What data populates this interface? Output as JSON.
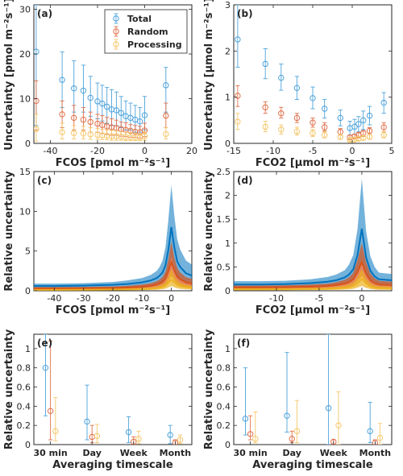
{
  "colors": {
    "total": "#0072BD",
    "random": "#D95319",
    "processing": "#EDB120",
    "total_marker": "#4DA3DB",
    "random_marker": "#E0704A",
    "processing_marker": "#F5C76A",
    "axis": "#262626"
  },
  "chart_data": [
    {
      "id": "a",
      "panel_label": "(a)",
      "type": "scatter",
      "xlabel": "FCOS [pmol m⁻²s⁻¹]",
      "ylabel": "Uncertainty [pmol m⁻²s⁻¹]",
      "xlim": [
        -47,
        20
      ],
      "ylim": [
        0,
        31
      ],
      "xticks": [
        -40,
        -20,
        0,
        20
      ],
      "yticks": [
        0,
        10,
        20,
        30
      ],
      "legend": {
        "placement": "top",
        "entries": [
          "Total",
          "Random",
          "Processing"
        ]
      },
      "x": [
        -46,
        -35,
        -30,
        -26,
        -23,
        -20,
        -18,
        -16,
        -14,
        -12,
        -10,
        -8,
        -6,
        -4,
        -2,
        0,
        9
      ],
      "series": [
        {
          "name": "Total",
          "values": [
            20.5,
            14.2,
            12.3,
            11.8,
            10.2,
            9.4,
            8.9,
            8.2,
            7.6,
            7.4,
            6.8,
            6.1,
            5.7,
            5.3,
            4.9,
            6.3,
            13.0
          ],
          "lower": [
            4.0,
            8.0,
            7.0,
            7.0,
            6.0,
            5.5,
            5.0,
            4.5,
            4.0,
            4.0,
            3.5,
            3.0,
            3.0,
            2.5,
            2.5,
            3.0,
            7.0
          ],
          "upper": [
            31.0,
            20.5,
            18.5,
            17.5,
            15.0,
            13.5,
            13.0,
            12.5,
            12.0,
            11.5,
            10.5,
            9.5,
            9.0,
            8.5,
            8.0,
            10.5,
            17.0
          ]
        },
        {
          "name": "Random",
          "values": [
            9.5,
            6.5,
            5.7,
            5.3,
            4.8,
            4.4,
            4.1,
            3.8,
            3.6,
            3.4,
            3.2,
            3.0,
            2.8,
            2.6,
            2.5,
            2.9,
            6.2
          ],
          "lower": [
            3.0,
            3.5,
            3.0,
            3.0,
            2.5,
            2.5,
            2.2,
            2.0,
            1.8,
            1.8,
            1.6,
            1.5,
            1.4,
            1.3,
            1.2,
            1.5,
            3.5
          ],
          "upper": [
            14.0,
            9.5,
            8.5,
            8.0,
            7.0,
            6.5,
            6.2,
            5.8,
            5.5,
            5.2,
            4.8,
            4.6,
            4.2,
            4.0,
            3.8,
            4.5,
            9.0
          ]
        },
        {
          "name": "Processing",
          "values": [
            3.2,
            2.5,
            2.3,
            2.2,
            2.0,
            1.9,
            1.8,
            1.7,
            1.6,
            1.6,
            1.5,
            1.4,
            1.4,
            1.3,
            1.3,
            1.6,
            2.1
          ],
          "lower": [
            0.5,
            1.0,
            1.0,
            1.0,
            0.9,
            0.9,
            0.8,
            0.8,
            0.7,
            0.7,
            0.7,
            0.6,
            0.6,
            0.6,
            0.6,
            0.7,
            1.0
          ],
          "upper": [
            6.5,
            4.5,
            4.0,
            3.8,
            3.5,
            3.3,
            3.1,
            3.0,
            2.9,
            2.8,
            2.6,
            2.5,
            2.4,
            2.3,
            2.2,
            2.6,
            3.5
          ]
        }
      ]
    },
    {
      "id": "b",
      "panel_label": "(b)",
      "type": "scatter",
      "xlabel": "FCO2 [μmol m⁻²s⁻¹]",
      "ylabel": "Uncertainty [μmol m⁻²s⁻¹]",
      "xlim": [
        -15,
        5
      ],
      "ylim": [
        0,
        3
      ],
      "xticks": [
        -15,
        -10,
        -5,
        0,
        5
      ],
      "yticks": [
        0,
        1,
        2,
        3
      ],
      "x": [
        -14.5,
        -11,
        -9,
        -7,
        -5,
        -3.5,
        -1.5,
        -0.3,
        0.3,
        0.8,
        1.4,
        2.2,
        4
      ],
      "series": [
        {
          "name": "Total",
          "values": [
            2.25,
            1.72,
            1.42,
            1.2,
            0.98,
            0.75,
            0.55,
            0.33,
            0.36,
            0.42,
            0.5,
            0.6,
            0.88
          ],
          "lower": [
            1.65,
            1.4,
            1.15,
            0.95,
            0.75,
            0.55,
            0.38,
            0.18,
            0.2,
            0.25,
            0.3,
            0.4,
            0.65
          ],
          "upper": [
            3.0,
            2.05,
            1.72,
            1.45,
            1.22,
            0.95,
            0.72,
            0.48,
            0.52,
            0.58,
            0.7,
            0.8,
            1.1
          ]
        },
        {
          "name": "Random",
          "values": [
            1.03,
            0.78,
            0.65,
            0.55,
            0.45,
            0.35,
            0.25,
            0.13,
            0.15,
            0.18,
            0.22,
            0.27,
            0.35
          ],
          "lower": [
            0.8,
            0.65,
            0.55,
            0.45,
            0.35,
            0.27,
            0.18,
            0.08,
            0.1,
            0.12,
            0.15,
            0.2,
            0.25
          ],
          "upper": [
            1.25,
            0.9,
            0.78,
            0.65,
            0.55,
            0.45,
            0.32,
            0.18,
            0.2,
            0.24,
            0.28,
            0.34,
            0.45
          ]
        },
        {
          "name": "Processing",
          "values": [
            0.47,
            0.36,
            0.3,
            0.26,
            0.22,
            0.18,
            0.14,
            0.07,
            0.08,
            0.1,
            0.12,
            0.14,
            0.18
          ],
          "lower": [
            0.3,
            0.25,
            0.2,
            0.18,
            0.15,
            0.12,
            0.09,
            0.04,
            0.05,
            0.06,
            0.07,
            0.09,
            0.12
          ],
          "upper": [
            0.65,
            0.48,
            0.4,
            0.35,
            0.3,
            0.25,
            0.2,
            0.1,
            0.12,
            0.14,
            0.16,
            0.2,
            0.25
          ]
        }
      ]
    },
    {
      "id": "c",
      "panel_label": "(c)",
      "type": "area",
      "xlabel": "FCOS [pmol m⁻²s⁻¹]",
      "ylabel": "Relative uncertainty",
      "xlim": [
        -47,
        7
      ],
      "ylim": [
        0,
        15
      ],
      "xticks": [
        -40,
        -30,
        -20,
        -10,
        0
      ],
      "yticks": [
        0,
        5,
        10,
        15
      ],
      "x": [
        -47,
        -40,
        -30,
        -20,
        -15,
        -10,
        -7,
        -5,
        -4,
        -3,
        -2,
        -1,
        0,
        1,
        2,
        3,
        5,
        7
      ],
      "series": [
        {
          "name": "Total",
          "values": [
            0.6,
            0.6,
            0.65,
            0.75,
            0.85,
            1.05,
            1.3,
            1.6,
            1.9,
            2.3,
            3.2,
            5.2,
            8.0,
            5.5,
            3.7,
            3.0,
            2.2,
            1.9
          ],
          "lower": [
            0.3,
            0.3,
            0.32,
            0.38,
            0.42,
            0.52,
            0.65,
            0.8,
            0.95,
            1.15,
            1.6,
            2.6,
            4.2,
            2.8,
            1.9,
            1.5,
            1.1,
            0.95
          ],
          "upper": [
            0.9,
            0.9,
            0.95,
            1.1,
            1.3,
            1.6,
            2.0,
            2.5,
            3.0,
            3.8,
            5.5,
            9.0,
            13.3,
            9.5,
            6.5,
            5.2,
            3.8,
            3.3
          ]
        },
        {
          "name": "Random",
          "values": [
            0.3,
            0.3,
            0.32,
            0.36,
            0.4,
            0.5,
            0.62,
            0.78,
            0.92,
            1.12,
            1.55,
            2.5,
            3.6,
            2.6,
            1.8,
            1.45,
            1.05,
            0.92
          ],
          "lower": [
            0.15,
            0.15,
            0.16,
            0.18,
            0.2,
            0.25,
            0.3,
            0.38,
            0.45,
            0.55,
            0.75,
            1.2,
            1.8,
            1.3,
            0.9,
            0.7,
            0.5,
            0.45
          ],
          "upper": [
            0.45,
            0.45,
            0.48,
            0.55,
            0.62,
            0.78,
            0.95,
            1.2,
            1.4,
            1.75,
            2.4,
            4.0,
            6.2,
            4.2,
            2.9,
            2.3,
            1.7,
            1.5
          ]
        },
        {
          "name": "Processing",
          "values": [
            0.12,
            0.12,
            0.13,
            0.15,
            0.17,
            0.21,
            0.26,
            0.33,
            0.39,
            0.47,
            0.65,
            1.05,
            1.4,
            1.1,
            0.76,
            0.6,
            0.44,
            0.38
          ],
          "lower": [
            0.05,
            0.05,
            0.05,
            0.06,
            0.07,
            0.08,
            0.1,
            0.13,
            0.16,
            0.19,
            0.26,
            0.42,
            0.6,
            0.44,
            0.3,
            0.24,
            0.18,
            0.15
          ],
          "upper": [
            0.2,
            0.2,
            0.22,
            0.25,
            0.28,
            0.35,
            0.43,
            0.55,
            0.65,
            0.8,
            1.1,
            1.8,
            2.7,
            1.9,
            1.3,
            1.0,
            0.75,
            0.65
          ]
        }
      ]
    },
    {
      "id": "d",
      "panel_label": "(d)",
      "type": "area",
      "xlabel": "FCO2 [μmol m⁻²s⁻¹]",
      "ylabel": "Relative uncertainty",
      "xlim": [
        -15,
        3.5
      ],
      "ylim": [
        0,
        2.5
      ],
      "xticks": [
        -10,
        -5,
        0
      ],
      "yticks": [
        0,
        0.5,
        1,
        1.5,
        2,
        2.5
      ],
      "x": [
        -15,
        -12,
        -9,
        -6,
        -4,
        -3,
        -2,
        -1.5,
        -1,
        -0.5,
        0,
        0.5,
        1,
        1.5,
        2,
        3.5
      ],
      "series": [
        {
          "name": "Total",
          "values": [
            0.13,
            0.13,
            0.14,
            0.16,
            0.19,
            0.22,
            0.28,
            0.34,
            0.45,
            0.75,
            1.3,
            0.7,
            0.42,
            0.3,
            0.24,
            0.22
          ],
          "lower": [
            0.07,
            0.07,
            0.07,
            0.08,
            0.1,
            0.12,
            0.15,
            0.18,
            0.23,
            0.38,
            0.65,
            0.35,
            0.21,
            0.15,
            0.12,
            0.11
          ],
          "upper": [
            0.2,
            0.2,
            0.21,
            0.24,
            0.29,
            0.34,
            0.43,
            0.55,
            0.75,
            1.3,
            2.35,
            1.25,
            0.72,
            0.5,
            0.38,
            0.35
          ]
        },
        {
          "name": "Random",
          "values": [
            0.07,
            0.07,
            0.075,
            0.085,
            0.1,
            0.12,
            0.15,
            0.18,
            0.24,
            0.4,
            0.6,
            0.36,
            0.22,
            0.16,
            0.13,
            0.12
          ],
          "lower": [
            0.035,
            0.035,
            0.037,
            0.04,
            0.05,
            0.06,
            0.07,
            0.09,
            0.12,
            0.2,
            0.3,
            0.18,
            0.11,
            0.08,
            0.06,
            0.06
          ],
          "upper": [
            0.11,
            0.11,
            0.115,
            0.13,
            0.15,
            0.18,
            0.23,
            0.28,
            0.38,
            0.65,
            1.0,
            0.6,
            0.36,
            0.26,
            0.21,
            0.19
          ]
        },
        {
          "name": "Processing",
          "values": [
            0.03,
            0.03,
            0.032,
            0.036,
            0.042,
            0.05,
            0.062,
            0.075,
            0.1,
            0.16,
            0.25,
            0.15,
            0.09,
            0.066,
            0.054,
            0.05
          ],
          "lower": [
            0.012,
            0.012,
            0.013,
            0.014,
            0.017,
            0.02,
            0.025,
            0.03,
            0.04,
            0.065,
            0.1,
            0.06,
            0.036,
            0.026,
            0.022,
            0.02
          ],
          "upper": [
            0.05,
            0.05,
            0.053,
            0.06,
            0.07,
            0.085,
            0.105,
            0.13,
            0.17,
            0.28,
            0.45,
            0.26,
            0.16,
            0.115,
            0.095,
            0.085
          ]
        }
      ]
    },
    {
      "id": "e",
      "panel_label": "(e)",
      "type": "scatter",
      "xlabel": "Averaging timescale",
      "ylabel": "Relative uncertainty",
      "xlim": [
        0.6,
        4.4
      ],
      "ylim": [
        0,
        1.15
      ],
      "yticks": [
        0,
        0.2,
        0.4,
        0.6,
        0.8,
        1
      ],
      "categories": [
        "30 min",
        "Day",
        "Week",
        "Month"
      ],
      "series": [
        {
          "name": "Total",
          "values": [
            0.8,
            0.24,
            0.13,
            0.1
          ],
          "lower": [
            0.3,
            0.05,
            0.02,
            0.01
          ],
          "upper": [
            1.15,
            0.62,
            0.29,
            0.2
          ]
        },
        {
          "name": "Random",
          "values": [
            0.35,
            0.08,
            0.03,
            0.02
          ],
          "lower": [
            0.05,
            0.02,
            0.0,
            0.0
          ],
          "upper": [
            1.08,
            0.2,
            0.08,
            0.05
          ]
        },
        {
          "name": "Processing",
          "values": [
            0.14,
            0.09,
            0.06,
            0.05
          ],
          "lower": [
            0.04,
            0.02,
            0.01,
            0.01
          ],
          "upper": [
            0.49,
            0.21,
            0.14,
            0.1
          ]
        }
      ]
    },
    {
      "id": "f",
      "panel_label": "(f)",
      "type": "scatter",
      "xlabel": "Averaging timescale",
      "ylabel": "Relative uncertainty",
      "xlim": [
        0.6,
        4.4
      ],
      "ylim": [
        0,
        1.15
      ],
      "yticks": [
        0,
        0.2,
        0.4,
        0.6,
        0.8,
        1
      ],
      "categories": [
        "30 min",
        "Day",
        "Week",
        "Month"
      ],
      "series": [
        {
          "name": "Total",
          "values": [
            0.27,
            0.3,
            0.38,
            0.14
          ],
          "lower": [
            0.1,
            0.13,
            0.0,
            0.02
          ],
          "upper": [
            0.8,
            0.96,
            1.15,
            0.44
          ]
        },
        {
          "name": "Random",
          "values": [
            0.11,
            0.06,
            0.03,
            0.02
          ],
          "lower": [
            0.05,
            0.02,
            0.0,
            0.0
          ],
          "upper": [
            0.3,
            0.14,
            0.05,
            0.05
          ]
        },
        {
          "name": "Processing",
          "values": [
            0.06,
            0.14,
            0.2,
            0.07
          ],
          "lower": [
            0.02,
            0.02,
            0.0,
            0.0
          ],
          "upper": [
            0.34,
            0.46,
            0.55,
            0.22
          ]
        }
      ]
    }
  ]
}
